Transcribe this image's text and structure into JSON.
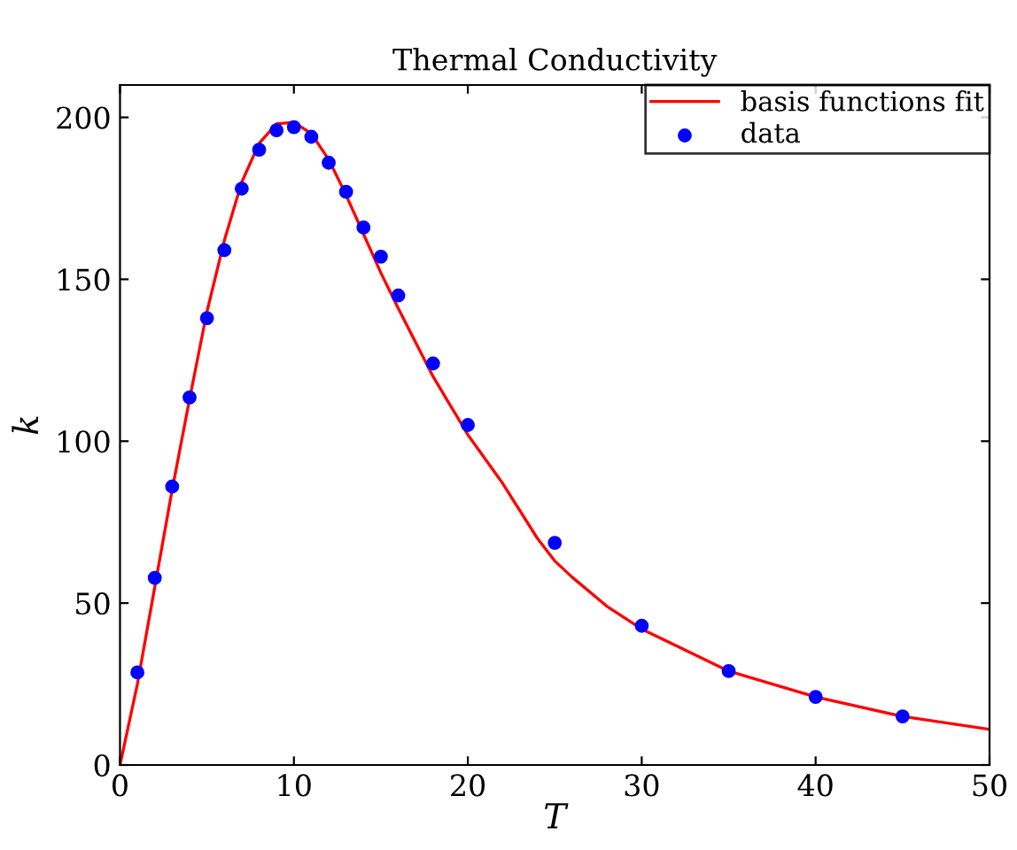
{
  "chart_data": {
    "type": "line",
    "title": "Thermal Conductivity",
    "xlabel": "T",
    "ylabel": "k",
    "xlim": [
      0,
      50
    ],
    "ylim": [
      0,
      210
    ],
    "xticks": [
      0,
      10,
      20,
      30,
      40,
      50
    ],
    "yticks": [
      0,
      50,
      100,
      150,
      200
    ],
    "grid": false,
    "legend": "top right",
    "series": [
      {
        "name": "basis functions fit",
        "color": "#ff0000",
        "marker": "none",
        "line_style": "solid",
        "x": [
          0,
          1,
          2,
          3,
          4,
          5,
          6,
          7,
          8,
          9,
          10,
          11,
          12,
          13,
          14,
          15,
          16,
          18,
          20,
          22,
          24,
          25,
          26,
          28,
          30,
          35,
          40,
          45,
          50
        ],
        "values": [
          0,
          25,
          55,
          85,
          113,
          140,
          162,
          180,
          192,
          198,
          198.5,
          195,
          187,
          176,
          164,
          152,
          141,
          120,
          102,
          87,
          70,
          63,
          58,
          49,
          42,
          29,
          21,
          15,
          11
        ]
      },
      {
        "name": "data",
        "type": "scatter",
        "color": "#0000ff",
        "marker": "circle",
        "x": [
          1,
          2,
          3,
          4,
          5,
          6,
          7,
          8,
          9,
          10,
          11,
          12,
          13,
          14,
          15,
          16,
          18,
          20,
          25,
          30,
          35,
          40,
          45
        ],
        "values": [
          28.6,
          57.8,
          86,
          113.5,
          138,
          159,
          178,
          190,
          196,
          197,
          194,
          186,
          177,
          166,
          157,
          145,
          124,
          105,
          68.6,
          43,
          29,
          21,
          15
        ]
      }
    ]
  }
}
